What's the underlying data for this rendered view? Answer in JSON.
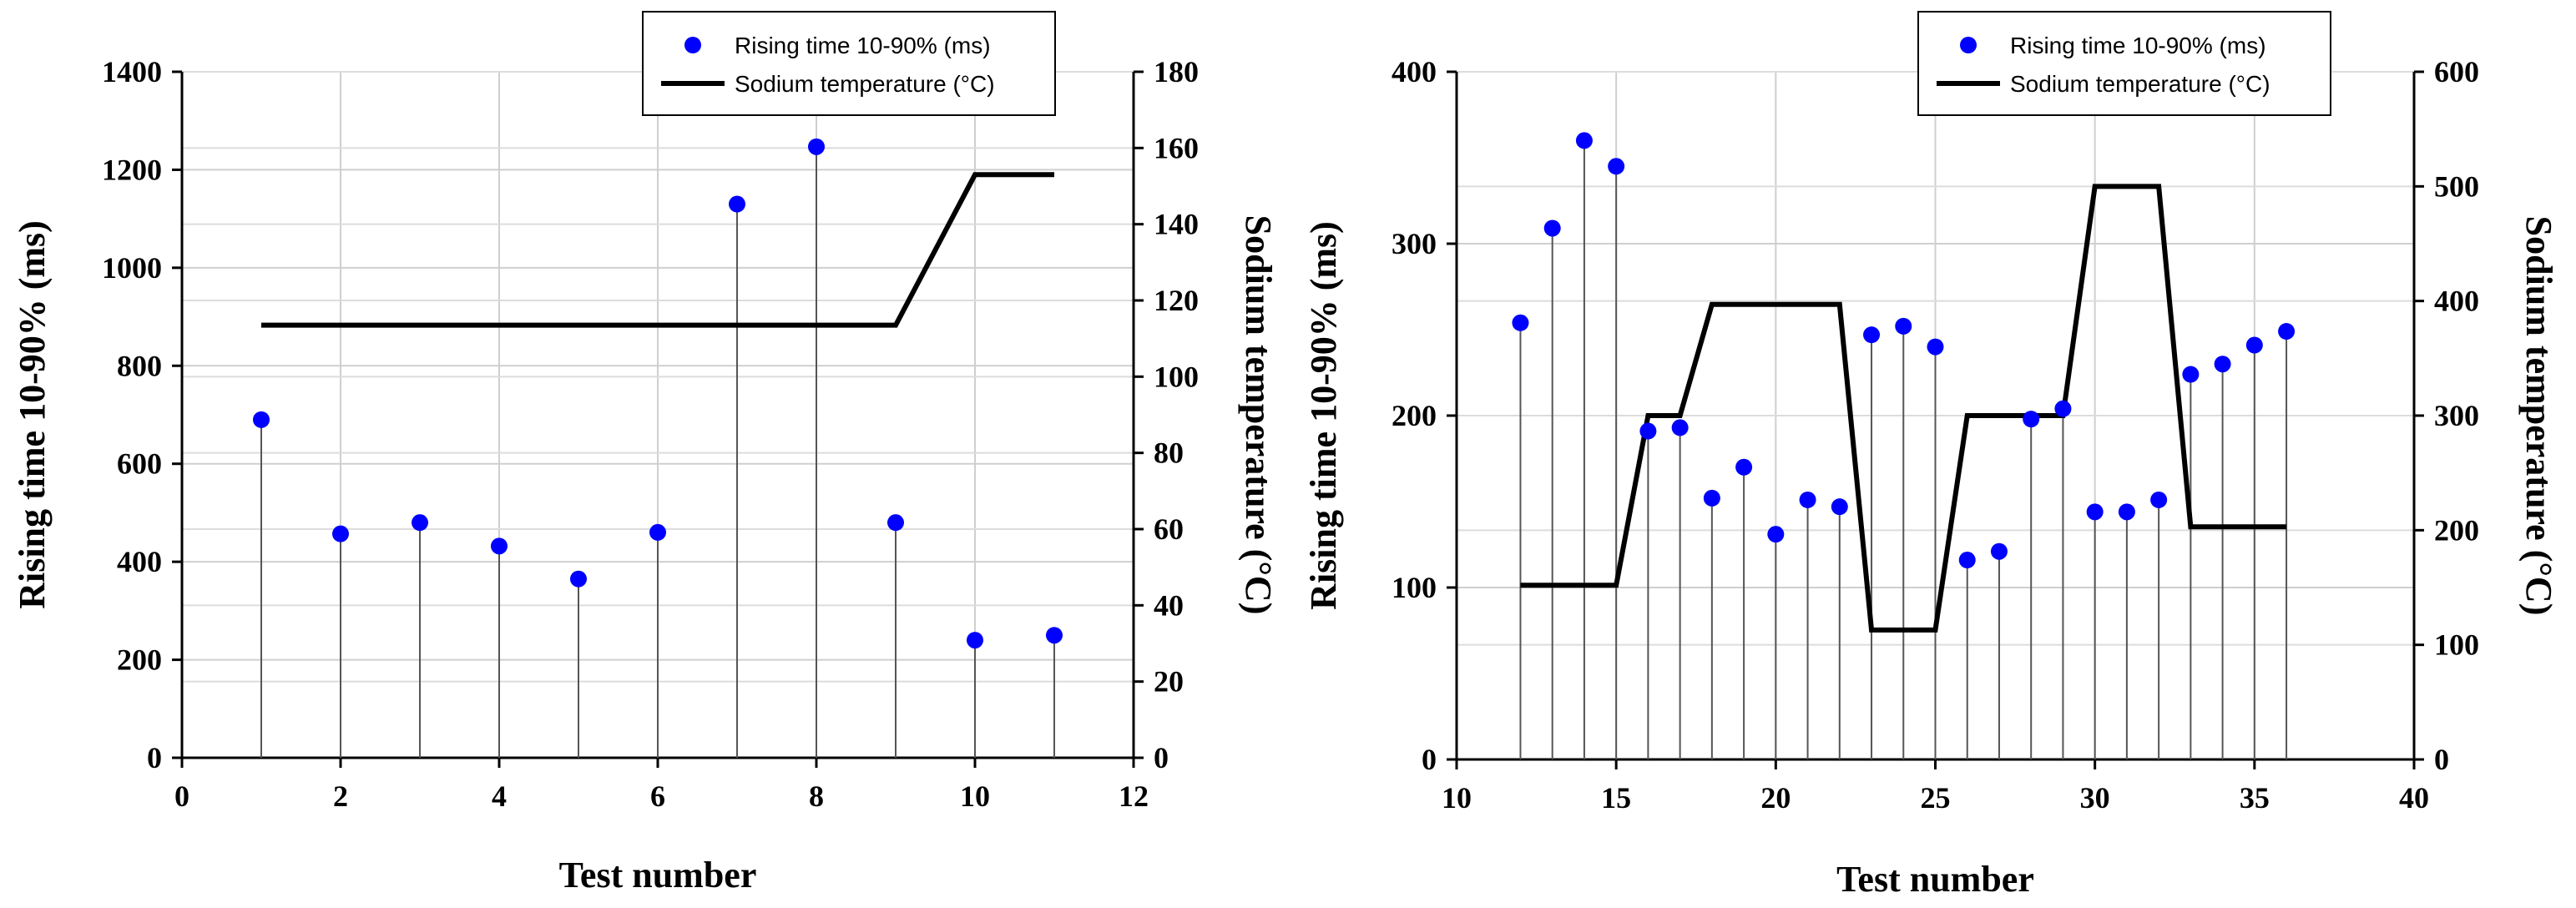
{
  "chart_data": [
    {
      "type": "line",
      "xlabel": "Test number",
      "ylabel_left": "Rising time 10-90% (ms)",
      "ylabel_right": "Sodium temperature (°C)",
      "xlim": [
        0,
        12
      ],
      "xticks": [
        0,
        2,
        4,
        6,
        8,
        10,
        12
      ],
      "ylim_left": [
        0,
        1400
      ],
      "yticks_left": [
        0,
        200,
        400,
        600,
        800,
        1000,
        1200,
        1400
      ],
      "ylim_right": [
        0,
        180
      ],
      "yticks_right": [
        0,
        20,
        40,
        60,
        80,
        100,
        120,
        140,
        160,
        180
      ],
      "grid": true,
      "legend_position": "top-center",
      "legend": [
        "Rising time 10-90% (ms)",
        "Sodium temperature (°C)"
      ],
      "rising_time": {
        "name": "Rising time 10-90% (ms)",
        "color": "#0000ff",
        "x": [
          1,
          2,
          3,
          4,
          5,
          6,
          7,
          8,
          9,
          10,
          11
        ],
        "y": [
          690,
          457,
          480,
          432,
          365,
          460,
          1130,
          1247,
          480,
          240,
          250
        ]
      },
      "sodium_temperature": {
        "name": "Sodium temperature (°C)",
        "color": "#000000",
        "x": [
          1,
          9,
          10,
          11
        ],
        "y": [
          113.5,
          113.5,
          153,
          153
        ]
      }
    },
    {
      "type": "line",
      "xlabel": "Test number",
      "ylabel_left": "Rising time 10-90% (ms)",
      "ylabel_right": "Sodium temperature (°C)",
      "xlim": [
        10,
        40
      ],
      "xticks": [
        10,
        15,
        20,
        25,
        30,
        35,
        40
      ],
      "ylim_left": [
        0,
        400
      ],
      "yticks_left": [
        0,
        100,
        200,
        300,
        400
      ],
      "ylim_right": [
        0,
        600
      ],
      "yticks_right": [
        0,
        100,
        200,
        300,
        400,
        500,
        600
      ],
      "grid": true,
      "legend_position": "top-right",
      "legend": [
        "Rising time 10-90% (ms)",
        "Sodium temperature (°C)"
      ],
      "rising_time": {
        "name": "Rising time 10-90% (ms)",
        "color": "#0000ff",
        "x": [
          12,
          13,
          14,
          15,
          16,
          17,
          18,
          19,
          20,
          21,
          22,
          23,
          24,
          25,
          26,
          27,
          28,
          29,
          30,
          31,
          32,
          33,
          34,
          35,
          36
        ],
        "y": [
          254,
          309,
          360,
          345,
          191,
          193,
          152,
          170,
          131,
          151,
          147,
          247,
          252,
          240,
          116,
          121,
          198,
          204,
          144,
          144,
          151,
          224,
          230,
          241,
          249
        ]
      },
      "sodium_temperature": {
        "name": "Sodium temperature (°C)",
        "color": "#000000",
        "x": [
          12,
          15,
          16,
          17,
          18,
          22,
          23,
          25,
          26,
          29,
          30,
          32,
          33,
          36
        ],
        "y": [
          152,
          152,
          300,
          300,
          397,
          397,
          113,
          113,
          300,
          300,
          500,
          500,
          203,
          203
        ]
      }
    }
  ]
}
